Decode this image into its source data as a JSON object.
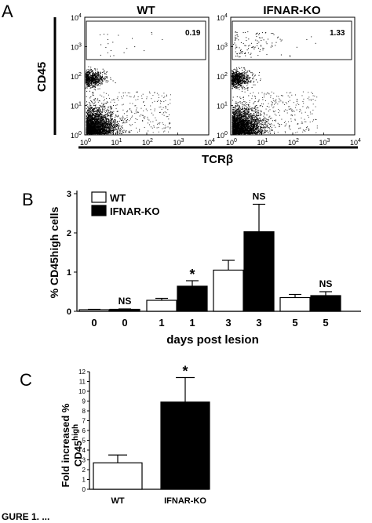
{
  "panel_letters": {
    "a": "A",
    "b": "B",
    "c": "C"
  },
  "caption_fragment": "GURE 1. ...",
  "chart_data": [
    {
      "panel": "A",
      "type": "scatter",
      "plots": [
        {
          "title": "WT",
          "gate_value": "0.19"
        },
        {
          "title": "IFNAR-KO",
          "gate_value": "1.33"
        }
      ],
      "ylabel": "CD45",
      "xlabel": "TCRβ",
      "tick_labels": [
        "10^0",
        "10^1",
        "10^2",
        "10^3",
        "10^4"
      ],
      "log_scale": true,
      "xlim": [
        1,
        10000
      ],
      "ylim": [
        1,
        10000
      ]
    },
    {
      "panel": "B",
      "type": "bar",
      "ylabel": "% CD45high cells",
      "xlabel": "days post lesion",
      "categories": [
        "0",
        "0",
        "1",
        "1",
        "3",
        "3",
        "5",
        "5"
      ],
      "series": [
        {
          "name": "WT",
          "color": "#ffffff",
          "values": [
            0.04,
            null,
            0.28,
            null,
            1.05,
            null,
            0.35,
            null
          ],
          "errors": [
            0.01,
            null,
            0.05,
            null,
            0.25,
            null,
            0.08,
            null
          ]
        },
        {
          "name": "IFNAR-KO",
          "color": "#000000",
          "values": [
            null,
            0.05,
            null,
            0.64,
            null,
            2.03,
            null,
            0.4
          ],
          "errors": [
            null,
            0.01,
            null,
            0.14,
            null,
            0.7,
            null,
            0.1
          ]
        }
      ],
      "significance": [
        "",
        "NS",
        "",
        "*",
        "",
        "NS",
        "",
        "NS"
      ],
      "ylim": [
        0,
        3
      ],
      "yticks": [
        "0",
        "1",
        "2",
        "3"
      ],
      "legend": "top-left"
    },
    {
      "panel": "C",
      "type": "bar",
      "ylabel": "Fold increased % CD45high",
      "categories": [
        "WT",
        "IFNAR-KO"
      ],
      "values": [
        2.7,
        8.9
      ],
      "errors": [
        0.8,
        2.5
      ],
      "colors": [
        "#ffffff",
        "#000000"
      ],
      "significance": [
        "",
        "*"
      ],
      "ylim": [
        0,
        12
      ],
      "yticks": [
        "0",
        "1",
        "2",
        "3",
        "4",
        "5",
        "6",
        "7",
        "8",
        "9",
        "10",
        "11",
        "12"
      ]
    }
  ]
}
